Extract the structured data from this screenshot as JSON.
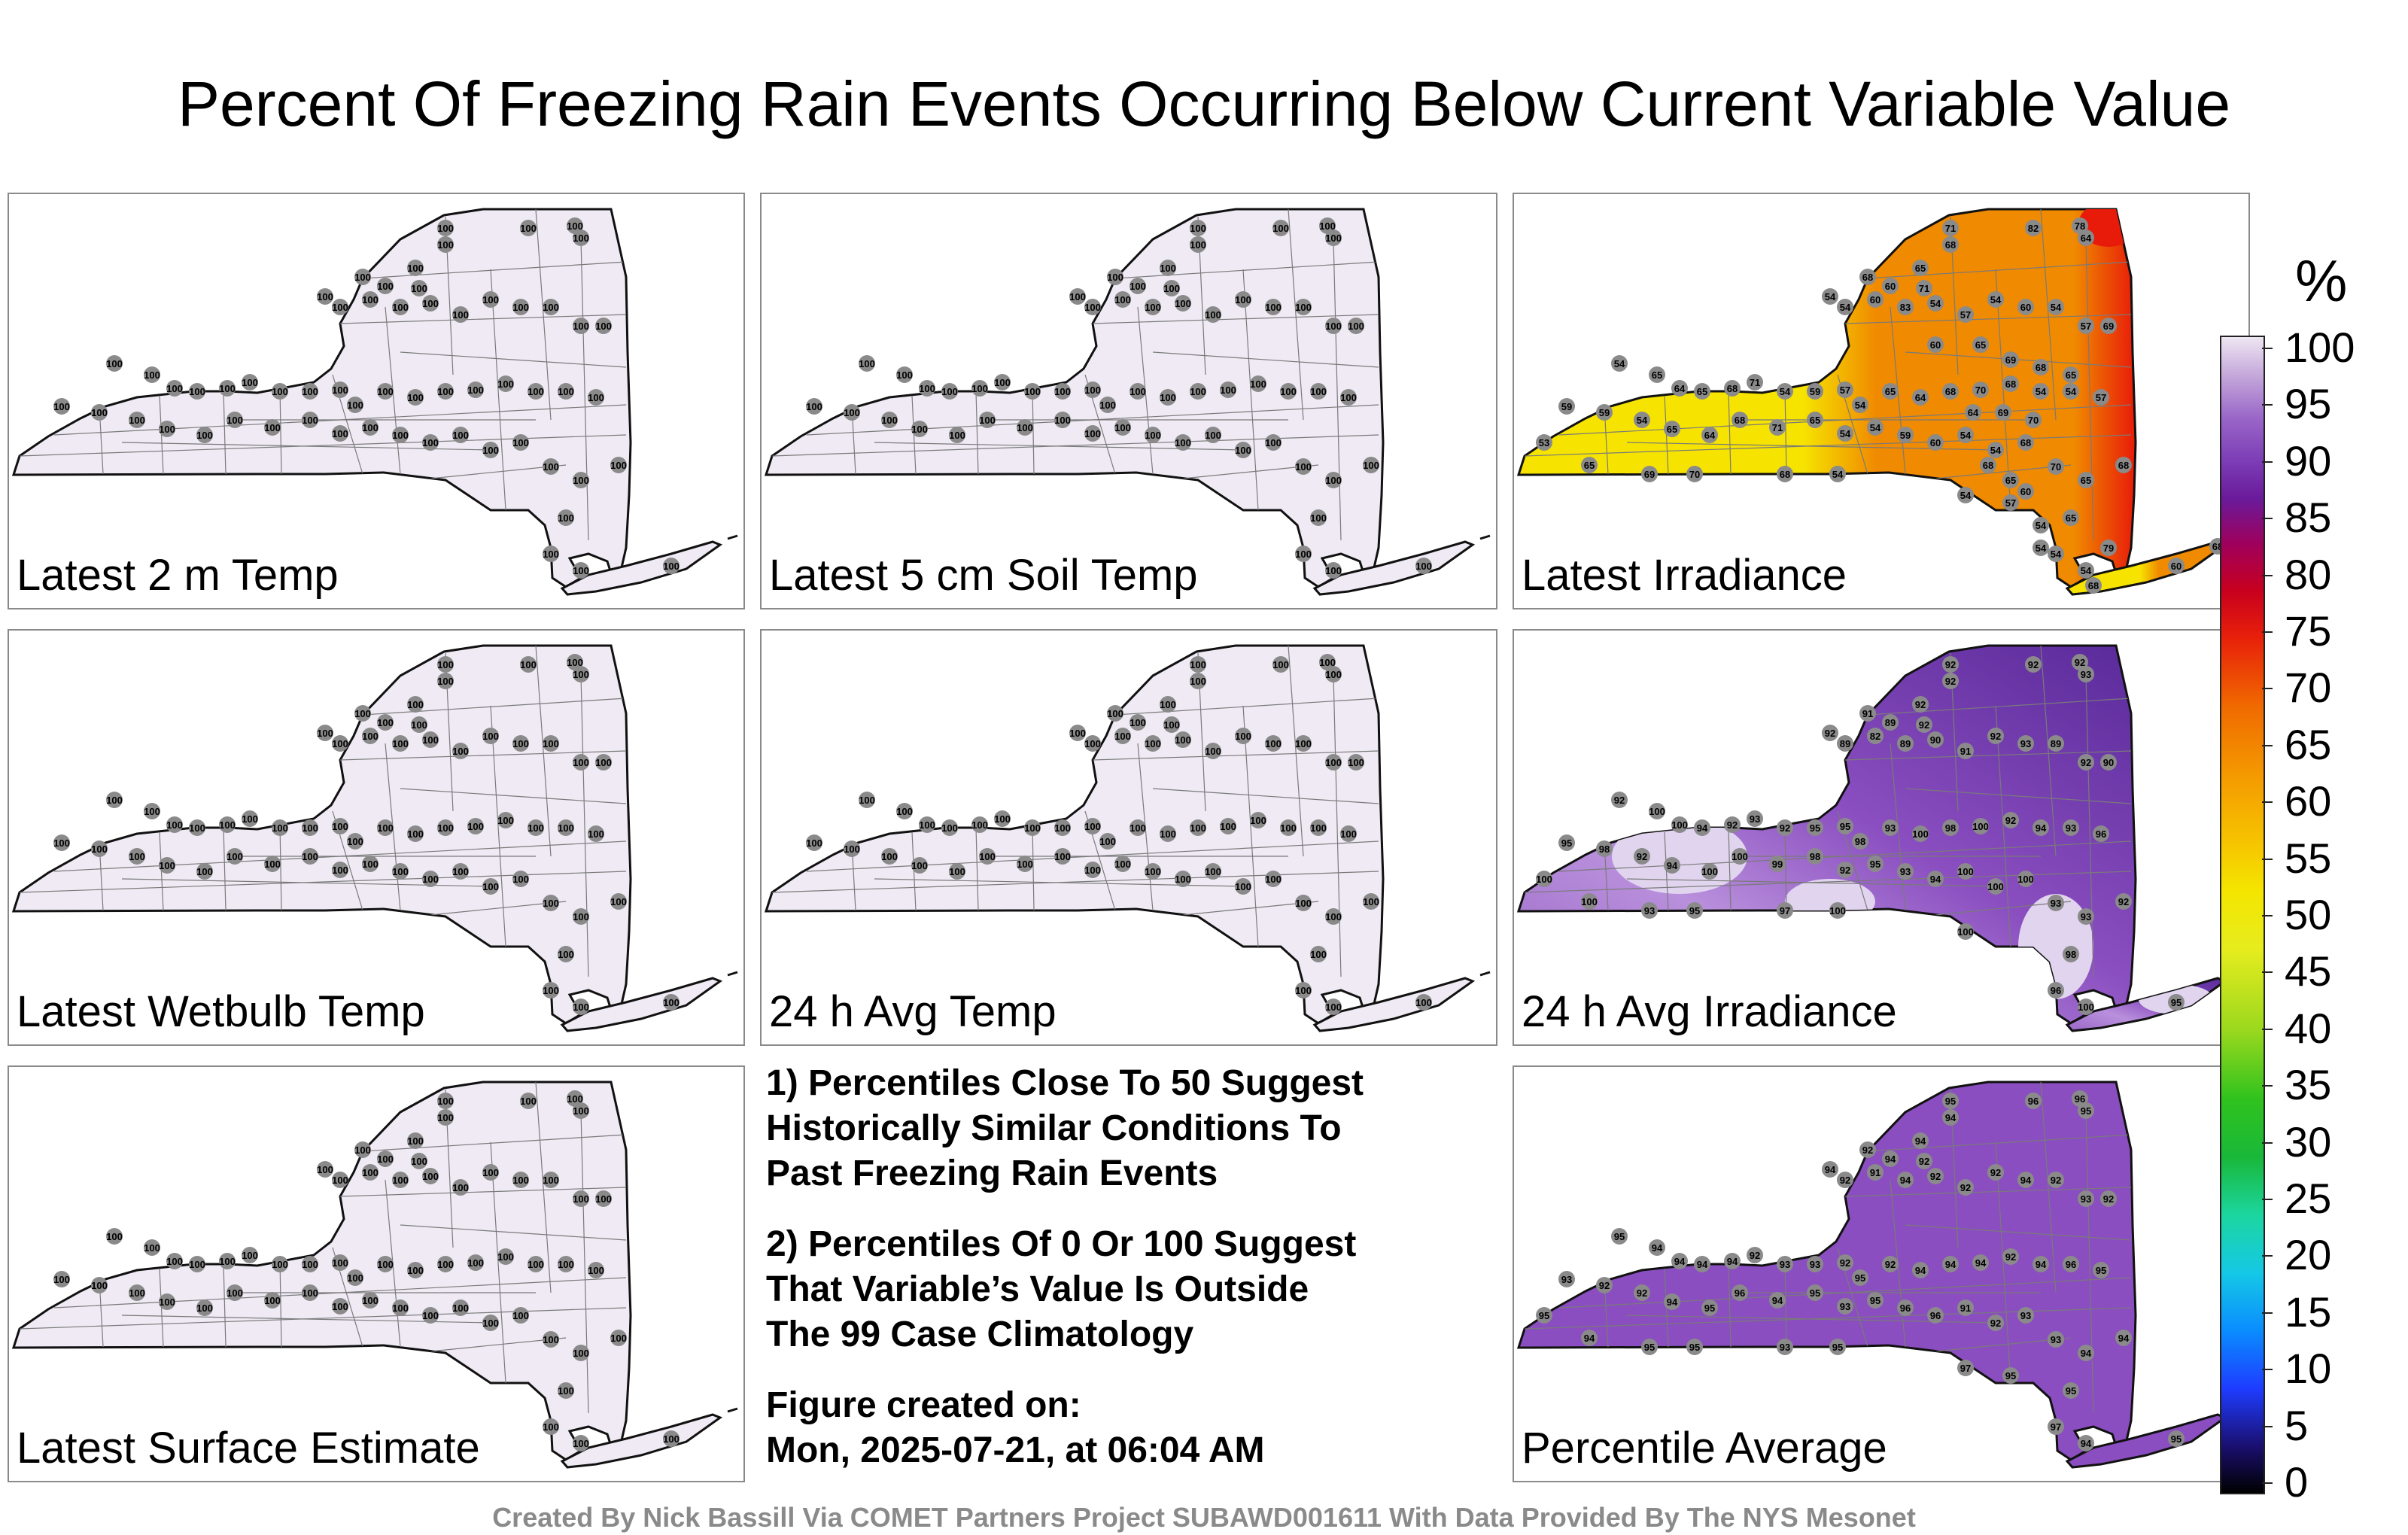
{
  "title": "Percent Of Freezing Rain Events Occurring Below Current Variable Value",
  "colors": {
    "low_fill": "#efeaf4",
    "station_dot": "#8a8a8a",
    "irr_yellow": "#f6e400",
    "irr_orange": "#f08a00",
    "irr_red": "#e81a0a",
    "purple": "#8a4ec0"
  },
  "panels": [
    {
      "label": "Latest 2 m Temp",
      "style": "uniform",
      "values": [
        "100",
        "100",
        "100",
        "100",
        "100",
        "100",
        "100",
        "100",
        "100",
        "100",
        "100",
        "100",
        "100",
        "100",
        "100",
        "100",
        "100",
        "100",
        "100",
        "100",
        "100",
        "100",
        "100",
        "100",
        "100",
        "100",
        "100",
        "100",
        "100",
        "100",
        "100",
        "100",
        "100",
        "100",
        "100",
        "100",
        "100",
        "100",
        "100",
        "100",
        "100",
        "100",
        "100",
        "100",
        "100",
        "100",
        "100",
        "100",
        "100",
        "100",
        "100",
        "100",
        "100",
        "100",
        "100",
        "100",
        "100",
        "100",
        "100",
        "100"
      ]
    },
    {
      "label": "Latest 5 cm Soil Temp",
      "style": "uniform",
      "values": [
        "100",
        "100",
        "100",
        "100",
        "100",
        "100",
        "100",
        "100",
        "100",
        "100",
        "100",
        "100",
        "100",
        "100",
        "100",
        "100",
        "100",
        "100",
        "100",
        "100",
        "100",
        "100",
        "100",
        "100",
        "100",
        "100",
        "100",
        "100",
        "100",
        "100",
        "100",
        "100",
        "100",
        "100",
        "100",
        "100",
        "100",
        "100",
        "100",
        "100",
        "100",
        "100",
        "100",
        "100",
        "100",
        "100",
        "100",
        "100",
        "100",
        "100",
        "100",
        "100",
        "100",
        "100",
        "100",
        "100",
        "100",
        "100",
        "100",
        "100"
      ]
    },
    {
      "label": "Latest Irradiance",
      "style": "irradiance",
      "values": [
        "71",
        "68",
        "82",
        "78",
        "64",
        "71",
        "68",
        "60",
        "65",
        "54",
        "54",
        "60",
        "83",
        "54",
        "57",
        "54",
        "60",
        "54",
        "57",
        "69",
        "54",
        "65",
        "64",
        "65",
        "68",
        "71",
        "54",
        "59",
        "57",
        "54",
        "65",
        "64",
        "68",
        "70",
        "68",
        "54",
        "54",
        "57",
        "59",
        "59",
        "54",
        "65",
        "64",
        "68",
        "71",
        "65",
        "54",
        "54",
        "59",
        "60",
        "54",
        "54",
        "68",
        "70",
        "65",
        "68",
        "65",
        "54",
        "54",
        "60",
        "53",
        "65",
        "69",
        "70",
        "68",
        "54",
        "54",
        "57",
        "54",
        "54",
        "60",
        "65",
        "69",
        "68",
        "65",
        "64",
        "69",
        "70",
        "68",
        "65",
        "60",
        "79",
        "68",
        "68"
      ]
    },
    {
      "label": "Latest Wetbulb Temp",
      "style": "uniform",
      "values": [
        "100",
        "100",
        "100",
        "100",
        "100",
        "100",
        "100",
        "100",
        "100",
        "100",
        "100",
        "100",
        "100",
        "100",
        "100",
        "100",
        "100",
        "100",
        "100",
        "100",
        "100",
        "100",
        "100",
        "100",
        "100",
        "100",
        "100",
        "100",
        "100",
        "100",
        "100",
        "100",
        "100",
        "100",
        "100",
        "100",
        "100",
        "100",
        "100",
        "100",
        "100",
        "100",
        "100",
        "100",
        "100",
        "100",
        "100",
        "100",
        "100",
        "100",
        "100",
        "100",
        "100",
        "100",
        "100",
        "100",
        "100",
        "100",
        "100",
        "100"
      ]
    },
    {
      "label": "24 h Avg Temp",
      "style": "uniform",
      "values": [
        "100",
        "100",
        "100",
        "100",
        "100",
        "100",
        "100",
        "100",
        "100",
        "100",
        "100",
        "100",
        "100",
        "100",
        "100",
        "100",
        "100",
        "100",
        "100",
        "100",
        "100",
        "100",
        "100",
        "100",
        "100",
        "100",
        "100",
        "100",
        "100",
        "100",
        "100",
        "100",
        "100",
        "100",
        "100",
        "100",
        "100",
        "100",
        "100",
        "100",
        "100",
        "100",
        "100",
        "100",
        "100",
        "100",
        "100",
        "100",
        "100",
        "100",
        "100",
        "100",
        "100",
        "100",
        "100",
        "100",
        "100",
        "100",
        "100",
        "100"
      ]
    },
    {
      "label": "24 h Avg Irradiance",
      "style": "avg_irradiance",
      "values": [
        "92",
        "92",
        "92",
        "92",
        "93",
        "92",
        "91",
        "89",
        "92",
        "92",
        "89",
        "82",
        "89",
        "90",
        "91",
        "92",
        "93",
        "89",
        "92",
        "90",
        "92",
        "100",
        "100",
        "94",
        "92",
        "93",
        "92",
        "95",
        "95",
        "98",
        "93",
        "100",
        "98",
        "100",
        "92",
        "94",
        "93",
        "96",
        "95",
        "98",
        "92",
        "94",
        "100",
        "100",
        "99",
        "98",
        "92",
        "95",
        "93",
        "94",
        "100",
        "100",
        "100",
        "93",
        "93",
        "92",
        "98",
        "96",
        "100",
        "95",
        "100",
        "100",
        "93",
        "95",
        "97",
        "100",
        "100"
      ]
    },
    {
      "label": "Latest Surface Estimate",
      "style": "uniform",
      "values": [
        "100",
        "100",
        "100",
        "100",
        "100",
        "100",
        "100",
        "100",
        "100",
        "100",
        "100",
        "100",
        "100",
        "100",
        "100",
        "100",
        "100",
        "100",
        "100",
        "100",
        "100",
        "100",
        "100",
        "100",
        "100",
        "100",
        "100",
        "100",
        "100",
        "100",
        "100",
        "100",
        "100",
        "100",
        "100",
        "100",
        "100",
        "100",
        "100",
        "100",
        "100",
        "100",
        "100",
        "100",
        "100",
        "100",
        "100",
        "100",
        "100",
        "100",
        "100",
        "100",
        "100",
        "100",
        "100",
        "100",
        "100",
        "100",
        "100",
        "100"
      ]
    },
    {
      "label": "Percentile Average",
      "style": "average",
      "values": [
        "95",
        "94",
        "96",
        "96",
        "95",
        "92",
        "92",
        "94",
        "94",
        "94",
        "92",
        "91",
        "94",
        "92",
        "92",
        "92",
        "94",
        "92",
        "93",
        "92",
        "95",
        "94",
        "94",
        "94",
        "94",
        "92",
        "93",
        "93",
        "92",
        "95",
        "92",
        "94",
        "94",
        "94",
        "92",
        "94",
        "96",
        "95",
        "93",
        "92",
        "92",
        "94",
        "95",
        "96",
        "94",
        "95",
        "93",
        "95",
        "96",
        "96",
        "91",
        "92",
        "93",
        "93",
        "94",
        "94",
        "95",
        "97",
        "94",
        "95",
        "95",
        "94",
        "95",
        "95",
        "93",
        "95",
        "97",
        "95"
      ]
    }
  ],
  "notes": {
    "note1": [
      "1) Percentiles Close To 50 Suggest",
      "Historically Similar Conditions To",
      "Past Freezing Rain Events"
    ],
    "note2": [
      "2) Percentiles Of 0 Or 100 Suggest",
      "That Variable’s Value Is Outside",
      "The 99 Case Climatology"
    ],
    "created": [
      "Figure created on:",
      "Mon, 2025-07-21, at 06:04 AM"
    ]
  },
  "colorbar": {
    "unit": "%",
    "ticks": [
      "100",
      "95",
      "90",
      "85",
      "80",
      "75",
      "70",
      "65",
      "60",
      "55",
      "50",
      "45",
      "40",
      "35",
      "30",
      "25",
      "20",
      "15",
      "10",
      "5",
      "0"
    ]
  },
  "credit": "Created By Nick Bassill Via COMET Partners Project SUBAWD001611 With Data Provided By The NYS Mesonet"
}
